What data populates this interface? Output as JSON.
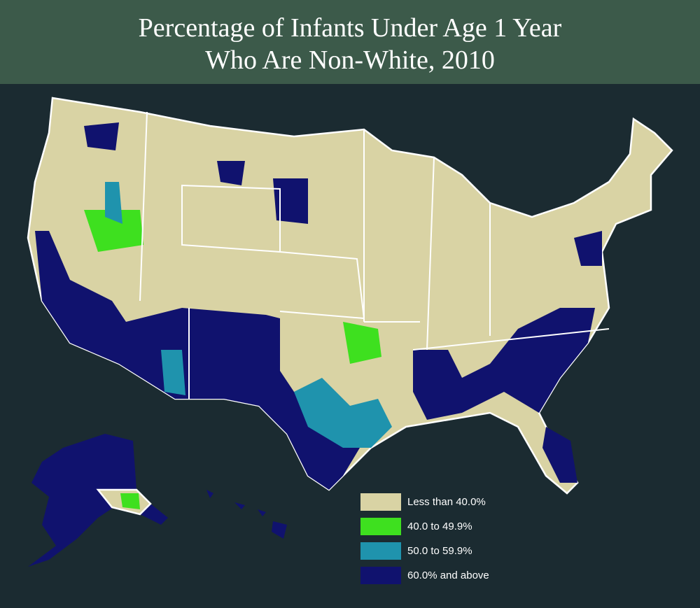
{
  "header": {
    "title_lines": [
      "Percentage of Infants Under Age 1 Year",
      "Who Are Non-White, 2010"
    ]
  },
  "legend": {
    "items": [
      {
        "label": "Less than 40.0%",
        "color": "#d9d3a4"
      },
      {
        "label": "40.0 to 49.9%",
        "color": "#3ee01f"
      },
      {
        "label": "50.0 to 59.9%",
        "color": "#1f93ad"
      },
      {
        "label": "60.0% and above",
        "color": "#10126e"
      }
    ]
  }
}
